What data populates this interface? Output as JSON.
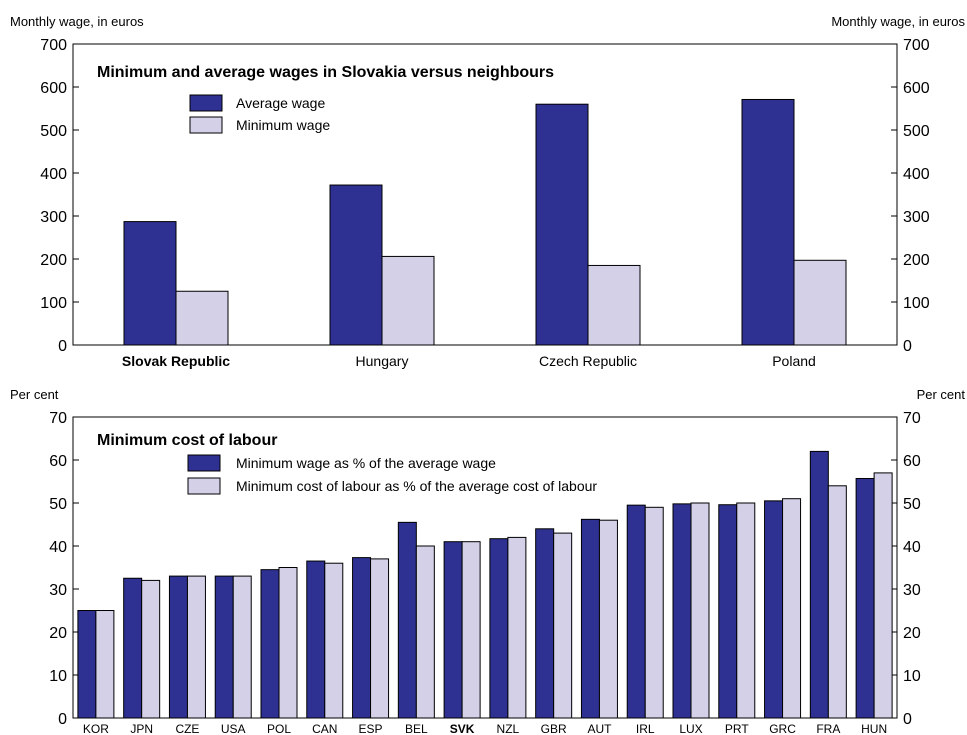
{
  "colors": {
    "dark": "#2E3192",
    "light": "#D3D0E8",
    "stroke": "#000000"
  },
  "chart_data": [
    {
      "type": "bar",
      "title": "Minimum and average wages in Slovakia versus neighbours",
      "ylabel_left": "Monthly wage, in euros",
      "ylabel_right": "Monthly wage, in euros",
      "ylim": [
        0,
        700
      ],
      "yticks": [
        0,
        100,
        200,
        300,
        400,
        500,
        600,
        700
      ],
      "categories": [
        "Slovak Republic",
        "Hungary",
        "Czech Republic",
        "Poland"
      ],
      "bold_category": "Slovak Republic",
      "series": [
        {
          "name": "Average wage",
          "values": [
            287,
            372,
            560,
            571
          ]
        },
        {
          "name": "Minimum wage",
          "values": [
            125,
            206,
            185,
            197
          ]
        }
      ],
      "legend_position": "top-left",
      "grid": false
    },
    {
      "type": "bar",
      "title": "Minimum cost of labour",
      "ylabel_left": "Per cent",
      "ylabel_right": "Per cent",
      "ylim": [
        0,
        70
      ],
      "yticks": [
        0,
        10,
        20,
        30,
        40,
        50,
        60,
        70
      ],
      "categories": [
        "KOR",
        "JPN",
        "CZE",
        "USA",
        "POL",
        "CAN",
        "ESP",
        "BEL",
        "SVK",
        "NZL",
        "GBR",
        "AUT",
        "IRL",
        "LUX",
        "PRT",
        "GRC",
        "FRA",
        "HUN"
      ],
      "bold_category": "SVK",
      "series": [
        {
          "name": "Minimum wage as % of the average wage",
          "values": [
            25,
            32.5,
            33,
            33,
            34.5,
            36.5,
            37.3,
            45.5,
            41,
            41.7,
            44,
            46.2,
            49.5,
            49.8,
            49.6,
            50.5,
            62,
            55.7
          ]
        },
        {
          "name": "Minimum cost of labour as % of the average cost of labour",
          "values": [
            25,
            32,
            33,
            33,
            35,
            36,
            37,
            40,
            41,
            42,
            43,
            46,
            49,
            50,
            50,
            51,
            54,
            57
          ]
        }
      ],
      "legend_position": "top-left",
      "grid": false
    }
  ]
}
